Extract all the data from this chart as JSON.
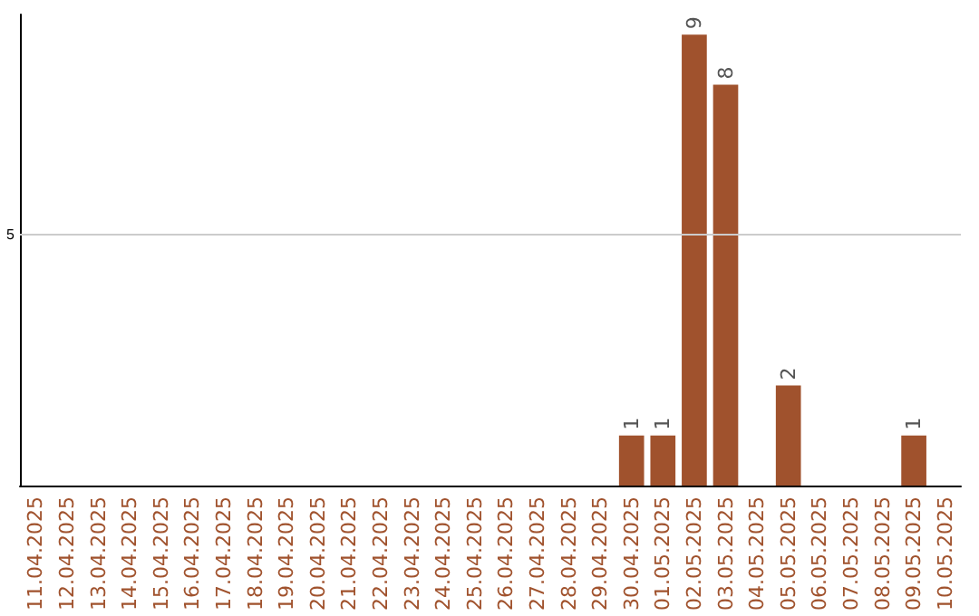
{
  "chart_data": {
    "type": "bar",
    "categories": [
      "11.04.2025",
      "12.04.2025",
      "13.04.2025",
      "14.04.2025",
      "15.04.2025",
      "16.04.2025",
      "17.04.2025",
      "18.04.2025",
      "19.04.2025",
      "20.04.2025",
      "21.04.2025",
      "22.04.2025",
      "23.04.2025",
      "24.04.2025",
      "25.04.2025",
      "26.04.2025",
      "27.04.2025",
      "28.04.2025",
      "29.04.2025",
      "30.04.2025",
      "01.05.2025",
      "02.05.2025",
      "03.05.2025",
      "04.05.2025",
      "05.05.2025",
      "06.05.2025",
      "07.05.2025",
      "08.05.2025",
      "09.05.2025",
      "10.05.2025"
    ],
    "values": [
      null,
      null,
      null,
      null,
      null,
      null,
      null,
      null,
      null,
      null,
      null,
      null,
      null,
      null,
      null,
      null,
      null,
      null,
      null,
      1,
      1,
      9,
      8,
      null,
      2,
      null,
      null,
      null,
      1,
      null
    ],
    "data_labels": true,
    "ylim": [
      0,
      9.4
    ],
    "ref_lines": [
      {
        "axis": "y",
        "value": 5,
        "label": "5",
        "color": "#cccccc"
      }
    ],
    "color": "#a0522d",
    "grid": false
  }
}
